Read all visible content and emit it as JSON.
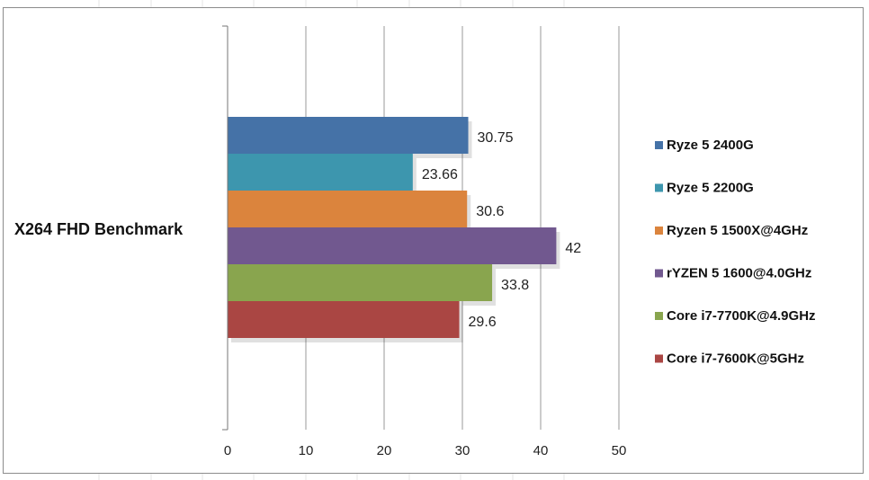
{
  "chart_data": {
    "type": "bar",
    "orientation": "horizontal",
    "row_label": "X264 FHD Benchmark",
    "title": "",
    "xlabel": "",
    "ylabel": "",
    "xlim": [
      0,
      50
    ],
    "x_ticks": [
      0,
      10,
      20,
      30,
      40,
      50
    ],
    "grid": true,
    "legend_position": "right",
    "series": [
      {
        "name": "Ryze 5 2400G",
        "value": 30.75,
        "label": "30.75",
        "color": "#4572a7"
      },
      {
        "name": "Ryze 5 2200G",
        "value": 23.66,
        "label": "23.66",
        "color": "#3d96ae"
      },
      {
        "name": "Ryzen 5 1500X@4GHz",
        "value": 30.6,
        "label": "30.6",
        "color": "#db843d"
      },
      {
        "name": "rYZEN 5 1600@4.0GHz",
        "value": 42,
        "label": "42",
        "color": "#71588f"
      },
      {
        "name": "Core i7-7700K@4.9GHz",
        "value": 33.8,
        "label": "33.8",
        "color": "#89a54e"
      },
      {
        "name": "Core i7-7600K@5GHz",
        "value": 29.6,
        "label": "29.6",
        "color": "#aa4643"
      }
    ]
  }
}
